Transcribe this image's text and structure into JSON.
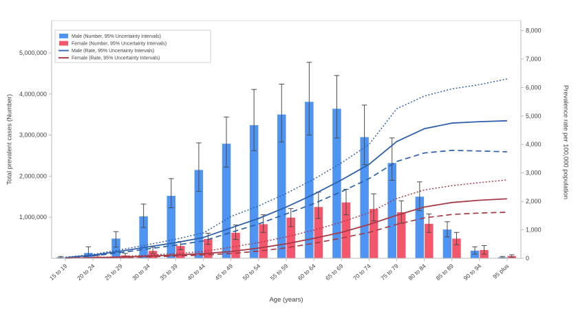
{
  "axes": {
    "left": {
      "title": "Total prevalent cases (Number)",
      "ticks": [
        {
          "value": 1000000,
          "label": "1,000,000"
        },
        {
          "value": 2000000,
          "label": "2,000,000"
        },
        {
          "value": 3000000,
          "label": "3,000,000"
        },
        {
          "value": 4000000,
          "label": "4,000,000"
        },
        {
          "value": 5000000,
          "label": "5,000,000"
        }
      ]
    },
    "right": {
      "title": "Prevalence rate per 100,000 population",
      "ticks": [
        {
          "value": 0,
          "label": "0"
        },
        {
          "value": 1000,
          "label": "1,000"
        },
        {
          "value": 2000,
          "label": "2,000"
        },
        {
          "value": 3000,
          "label": "3,000"
        },
        {
          "value": 4000,
          "label": "4,000"
        },
        {
          "value": 5000,
          "label": "5,000"
        },
        {
          "value": 6000,
          "label": "6,000"
        },
        {
          "value": 7000,
          "label": "7,000"
        },
        {
          "value": 8000,
          "label": "8,000"
        }
      ]
    },
    "x": {
      "title": "Age (years)"
    }
  },
  "legend": {
    "items": [
      {
        "label": "Male (Number, 95% Uncertainty Intervals)",
        "swatch": "bar",
        "color": "#4E95F3"
      },
      {
        "label": "Female (Number, 95% Uncertainty Intervals)",
        "swatch": "bar",
        "color": "#F4566C"
      },
      {
        "label": "Male (Rate, 95% Uncertainty Intervals)",
        "swatch": "line",
        "color": "#3B6CB5"
      },
      {
        "label": "Female (Rate, 95% Uncertainty Intervals)",
        "swatch": "line",
        "color": "#A63946"
      }
    ]
  },
  "colors": {
    "male_bar": "#4E95F3",
    "female_bar": "#F4566C",
    "male_line": "#2D5FA8",
    "female_line": "#A63946",
    "error_bar": "#4a4a4a",
    "axis_line": "#b9b9b9",
    "plot_border": "#dcdcdc",
    "text": "#3f3f3f",
    "legend_border": "#cfcfcf"
  },
  "chart_data": {
    "type": "bar",
    "note": "grouped bars on left axis (counts) + rate lines with dotted upper / dashed lower 95% UI bounds on right axis",
    "grid": false,
    "legend_position": "top-left",
    "left_ylim": [
      0,
      5800000
    ],
    "right_ylim": [
      0,
      8000
    ],
    "categories": [
      "15 to 19",
      "20 to 24",
      "25 to 29",
      "30 to 34",
      "35 to 39",
      "40 to 44",
      "45 to 49",
      "50 to 54",
      "55 to 59",
      "60 to 64",
      "65 to 69",
      "70 to 74",
      "75 to 79",
      "80 to 84",
      "85 to 89",
      "90 to 94",
      "95 plus"
    ],
    "series": [
      {
        "name": "Male (Number, 95% Uncertainty Intervals)",
        "type": "bar",
        "axis": "left",
        "color_key": "male_bar",
        "values": [
          25000,
          130000,
          480000,
          1020000,
          1520000,
          2150000,
          2790000,
          3240000,
          3500000,
          3810000,
          3640000,
          2950000,
          2320000,
          1500000,
          700000,
          185000,
          25000
        ],
        "upper_95": [
          45000,
          280000,
          650000,
          1320000,
          1940000,
          2810000,
          3440000,
          4110000,
          4240000,
          4770000,
          4450000,
          3730000,
          2930000,
          1860000,
          890000,
          280000,
          45000
        ],
        "lower_95": [
          12000,
          60000,
          270000,
          750000,
          1230000,
          1630000,
          2220000,
          2620000,
          2830000,
          3000000,
          2930000,
          2280000,
          1900000,
          1160000,
          520000,
          100000,
          10000
        ]
      },
      {
        "name": "Female (Number, 95% Uncertainty Intervals)",
        "type": "bar",
        "axis": "left",
        "color_key": "female_bar",
        "values": [
          8000,
          40000,
          70000,
          180000,
          300000,
          470000,
          620000,
          830000,
          990000,
          1250000,
          1360000,
          1200000,
          1120000,
          840000,
          480000,
          200000,
          55000
        ],
        "upper_95": [
          15000,
          70000,
          120000,
          270000,
          410000,
          610000,
          810000,
          1060000,
          1210000,
          1610000,
          1680000,
          1570000,
          1400000,
          1080000,
          630000,
          310000,
          85000
        ],
        "lower_95": [
          4000,
          20000,
          40000,
          120000,
          210000,
          340000,
          460000,
          630000,
          770000,
          970000,
          1060000,
          910000,
          850000,
          630000,
          330000,
          100000,
          30000
        ]
      },
      {
        "name": "Male (Rate, 95% Uncertainty Intervals)",
        "type": "line",
        "axis": "right",
        "color_key": "male_line",
        "values": [
          25,
          110,
          250,
          400,
          550,
          730,
          1070,
          1400,
          1800,
          2250,
          2750,
          3300,
          4100,
          4550,
          4750,
          4800,
          4830
        ],
        "upper_95": [
          35,
          140,
          300,
          480,
          670,
          890,
          1470,
          1840,
          2280,
          2780,
          3350,
          4000,
          5250,
          5700,
          5950,
          6100,
          6300
        ],
        "lower_95": [
          18,
          85,
          200,
          330,
          460,
          610,
          910,
          1210,
          1560,
          1920,
          2340,
          2800,
          3400,
          3700,
          3790,
          3770,
          3740
        ]
      },
      {
        "name": "Female (Rate, 95% Uncertainty Intervals)",
        "type": "line",
        "axis": "right",
        "color_key": "female_line",
        "values": [
          6,
          20,
          40,
          75,
          115,
          165,
          240,
          360,
          510,
          700,
          910,
          1190,
          1510,
          1800,
          1960,
          2040,
          2090
        ],
        "upper_95": [
          10,
          30,
          60,
          110,
          165,
          240,
          390,
          550,
          750,
          990,
          1270,
          1600,
          2100,
          2400,
          2550,
          2660,
          2750
        ],
        "lower_95": [
          4,
          13,
          25,
          50,
          80,
          115,
          170,
          250,
          370,
          525,
          710,
          910,
          1190,
          1420,
          1540,
          1590,
          1620
        ]
      }
    ]
  }
}
